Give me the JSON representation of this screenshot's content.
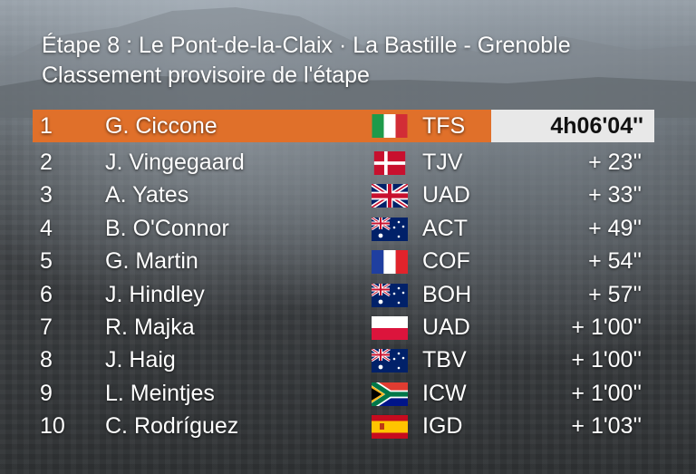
{
  "header": {
    "title": "Étape 8 : Le Pont-de-la-Claix · La Bastille - Grenoble",
    "subtitle": "Classement provisoire de l'étape"
  },
  "colors": {
    "leader_row": "#e0702a",
    "leader_time_bg": "#e8e8e8"
  },
  "standings": [
    {
      "rank": "1",
      "name": "G. Ciccone",
      "flag": "italy-flag-icon",
      "team": "TFS",
      "time": "4h06'04''"
    },
    {
      "rank": "2",
      "name": "J. Vingegaard",
      "flag": "denmark-flag-icon",
      "team": "TJV",
      "time": "+ 23''"
    },
    {
      "rank": "3",
      "name": "A. Yates",
      "flag": "uk-flag-icon",
      "team": "UAD",
      "time": "+ 33''"
    },
    {
      "rank": "4",
      "name": "B. O'Connor",
      "flag": "australia-flag-icon",
      "team": "ACT",
      "time": "+ 49''"
    },
    {
      "rank": "5",
      "name": "G. Martin",
      "flag": "france-flag-icon",
      "team": "COF",
      "time": "+ 54''"
    },
    {
      "rank": "6",
      "name": "J. Hindley",
      "flag": "australia-flag-icon",
      "team": "BOH",
      "time": "+ 57''"
    },
    {
      "rank": "7",
      "name": "R. Majka",
      "flag": "poland-flag-icon",
      "team": "UAD",
      "time": "+ 1'00''"
    },
    {
      "rank": "8",
      "name": "J. Haig",
      "flag": "australia-flag-icon",
      "team": "TBV",
      "time": "+ 1'00''"
    },
    {
      "rank": "9",
      "name": "L. Meintjes",
      "flag": "south-africa-flag-icon",
      "team": "ICW",
      "time": "+ 1'00''"
    },
    {
      "rank": "10",
      "name": "C. Rodríguez",
      "flag": "spain-flag-icon",
      "team": "IGD",
      "time": "+ 1'03''"
    }
  ]
}
